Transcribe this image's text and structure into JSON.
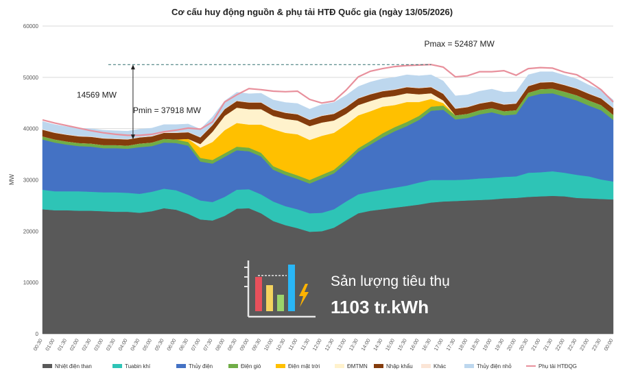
{
  "chart_data": {
    "type": "area",
    "title": "Cơ cấu huy động nguồn & phụ tải HTĐ Quốc gia (ngày 13/05/2026)",
    "ylabel": "MW",
    "xlabel": "",
    "ylim": [
      0,
      60000
    ],
    "y_ticks": [
      0,
      10000,
      20000,
      30000,
      40000,
      50000,
      60000
    ],
    "grid": true,
    "legend_position": "bottom",
    "x": [
      "00:30",
      "01:00",
      "01:30",
      "02:00",
      "02:30",
      "03:00",
      "03:30",
      "04:00",
      "04:30",
      "05:00",
      "05:30",
      "06:00",
      "06:30",
      "07:00",
      "07:30",
      "08:00",
      "08:30",
      "09:00",
      "09:30",
      "10:00",
      "10:30",
      "11:00",
      "11:30",
      "12:00",
      "12:30",
      "13:00",
      "13:30",
      "14:00",
      "14:30",
      "15:00",
      "15:30",
      "16:00",
      "16:30",
      "17:00",
      "17:30",
      "18:00",
      "18:30",
      "19:00",
      "19:30",
      "20:00",
      "20:30",
      "21:00",
      "21:30",
      "22:00",
      "22:30",
      "23:00",
      "23:30",
      "00:00"
    ],
    "series": [
      {
        "name": "Nhiệt điện than",
        "color": "#595959",
        "values": [
          24300,
          24100,
          24100,
          24000,
          24000,
          23900,
          23800,
          23800,
          23600,
          23900,
          24500,
          24200,
          23400,
          22300,
          22100,
          23000,
          24400,
          24500,
          23500,
          22000,
          21200,
          20600,
          19900,
          20000,
          20700,
          22100,
          23500,
          24000,
          24300,
          24600,
          24900,
          25200,
          25600,
          25800,
          25900,
          26000,
          26100,
          26200,
          26400,
          26500,
          26700,
          26800,
          26900,
          26800,
          26500,
          26400,
          26300,
          26200
        ]
      },
      {
        "name": "Tuabin khí",
        "color": "#2ec4b6",
        "values": [
          3800,
          3700,
          3700,
          3800,
          3700,
          3700,
          3800,
          3700,
          3700,
          3800,
          3800,
          3800,
          3700,
          3700,
          3600,
          3700,
          3700,
          3700,
          3700,
          3800,
          3700,
          3700,
          3600,
          3600,
          3600,
          3700,
          3700,
          3700,
          3800,
          3900,
          4000,
          4300,
          4400,
          4200,
          4100,
          4100,
          4200,
          4200,
          4200,
          4200,
          4700,
          4700,
          4800,
          4600,
          4500,
          4300,
          3800,
          3500
        ]
      },
      {
        "name": "Thủy điện",
        "color": "#4472c4",
        "values": [
          9800,
          9500,
          9100,
          8800,
          8800,
          8600,
          8600,
          8600,
          9100,
          8900,
          9000,
          9200,
          9600,
          7600,
          7500,
          7800,
          7700,
          7400,
          7400,
          6200,
          6100,
          5900,
          5800,
          6700,
          7000,
          7500,
          8300,
          9200,
          10200,
          11000,
          11600,
          12200,
          13500,
          13700,
          11800,
          12000,
          12500,
          12800,
          12000,
          12100,
          14800,
          15300,
          15200,
          14800,
          14500,
          13800,
          13500,
          12000
        ]
      },
      {
        "name": "Điện gió",
        "color": "#70ad47",
        "values": [
          600,
          600,
          600,
          600,
          600,
          600,
          600,
          600,
          700,
          700,
          700,
          700,
          700,
          700,
          700,
          700,
          700,
          700,
          700,
          700,
          700,
          700,
          700,
          700,
          700,
          700,
          700,
          700,
          800,
          800,
          800,
          800,
          800,
          800,
          800,
          800,
          800,
          800,
          800,
          800,
          800,
          900,
          900,
          1000,
          1000,
          1000,
          1000,
          1000
        ]
      },
      {
        "name": "Điện mặt trời",
        "color": "#ffc000",
        "values": [
          0,
          0,
          0,
          0,
          0,
          0,
          0,
          0,
          0,
          0,
          0,
          0,
          600,
          2000,
          3500,
          4500,
          4600,
          4500,
          5500,
          7200,
          7500,
          8000,
          7800,
          7600,
          7200,
          6800,
          6400,
          5800,
          5200,
          4300,
          3900,
          2700,
          1500,
          500,
          0,
          0,
          0,
          0,
          0,
          0,
          0,
          0,
          0,
          0,
          0,
          0,
          0,
          0
        ]
      },
      {
        "name": "ĐMTMN",
        "color": "#fff2cc",
        "values": [
          0,
          0,
          0,
          0,
          0,
          0,
          0,
          0,
          0,
          0,
          0,
          0,
          0,
          700,
          2000,
          2800,
          3000,
          3000,
          3000,
          2600,
          2700,
          2700,
          2700,
          2600,
          2400,
          2100,
          2000,
          2000,
          1800,
          1800,
          1700,
          1500,
          1100,
          500,
          0,
          0,
          0,
          0,
          0,
          0,
          0,
          0,
          0,
          0,
          0,
          0,
          0,
          0
        ]
      },
      {
        "name": "Nhập khẩu",
        "color": "#843c0c",
        "values": [
          1300,
          1300,
          1300,
          1300,
          1300,
          1300,
          1200,
          1200,
          1200,
          1200,
          1200,
          1300,
          1300,
          1300,
          1300,
          1300,
          1300,
          1300,
          1300,
          1200,
          1200,
          1200,
          1200,
          1300,
          1300,
          1300,
          1300,
          1300,
          1200,
          1200,
          1200,
          1200,
          1200,
          1300,
          1300,
          1300,
          1300,
          1300,
          1300,
          1300,
          1300,
          1300,
          1300,
          1300,
          1300,
          1300,
          1300,
          1300
        ]
      },
      {
        "name": "Khác",
        "color": "#fbe5d6",
        "values": [
          100,
          100,
          100,
          100,
          100,
          100,
          100,
          100,
          100,
          100,
          100,
          100,
          100,
          100,
          100,
          100,
          100,
          100,
          100,
          100,
          100,
          100,
          100,
          100,
          100,
          100,
          100,
          100,
          100,
          100,
          100,
          100,
          100,
          100,
          100,
          100,
          100,
          100,
          100,
          100,
          100,
          100,
          100,
          100,
          100,
          100,
          100,
          100
        ]
      },
      {
        "name": "Thủy điện nhỏ",
        "color": "#bdd7ee",
        "values": [
          1500,
          1500,
          1500,
          1500,
          1500,
          1500,
          1500,
          1500,
          1500,
          1500,
          1500,
          1500,
          1500,
          1500,
          1500,
          1500,
          1600,
          1600,
          1700,
          1800,
          1900,
          2000,
          2000,
          2100,
          2100,
          2200,
          2200,
          2300,
          2300,
          2300,
          2300,
          2300,
          2300,
          2400,
          2400,
          2300,
          2300,
          2300,
          2300,
          2200,
          2100,
          2000,
          1900,
          1800,
          1800,
          1600,
          1500,
          1500
        ]
      }
    ],
    "load_series": {
      "name": "Phụ tải HTĐQG",
      "color": "#e8909c",
      "values": [
        41700,
        41100,
        40600,
        40100,
        39600,
        39200,
        38900,
        38700,
        38700,
        38900,
        39400,
        39700,
        40100,
        39900,
        41300,
        45200,
        46600,
        47800,
        47600,
        47300,
        47200,
        47300,
        45700,
        45000,
        45400,
        47500,
        50100,
        51200,
        51700,
        52100,
        52300,
        52400,
        52487,
        52000,
        50100,
        50300,
        51100,
        51100,
        51300,
        50400,
        51700,
        51900,
        51800,
        51000,
        50500,
        49200,
        47600,
        45200
      ]
    },
    "annotations": {
      "pmax": "Pmax = 52487 MW",
      "pmin": "Pmin = 37918 MW",
      "diff": "14569 MW",
      "pmax_value": 52487,
      "pmin_value": 37918
    }
  },
  "summary": {
    "label": "Sản lượng tiêu thụ",
    "value": "1103 tr.kWh",
    "icon": "bar-chart-lightning-icon"
  }
}
